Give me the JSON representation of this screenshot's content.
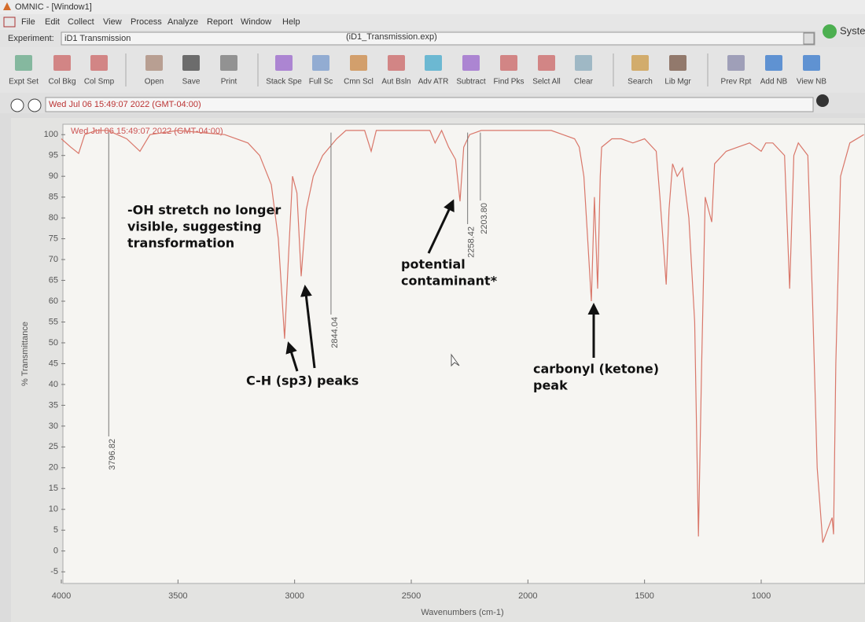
{
  "window_title": "OMNIC - [Window1]",
  "menu": [
    "File",
    "Edit",
    "Collect",
    "View",
    "Process",
    "Analyze",
    "Report",
    "Window",
    "Help"
  ],
  "experiment": {
    "label": "Experiment:",
    "value": "iD1 Transmission",
    "file": "(iD1_Transmission.exp)",
    "system": "Syste"
  },
  "toolbar": [
    "Expt Set",
    "Col Bkg",
    "Col Smp",
    "Open",
    "Save",
    "Print",
    "Stack Spe",
    "Full Sc",
    "Cmn Scl",
    "Aut Bsln",
    "Adv ATR",
    "Subtract",
    "Find Pks",
    "Selct All",
    "Clear",
    "Search",
    "Lib Mgr",
    "Prev Rpt",
    "Add NB",
    "View NB"
  ],
  "info_bar": {
    "timestamp": "Wed Jul 06 15:49:07 2022 (GMT-04:00)"
  },
  "chart_data": {
    "type": "line",
    "title": "Wed Jul 06 15:49:07 2022 (GMT-04:00)",
    "x_label": "Wavenumbers (cm-1)",
    "y_label": "% Transmittance",
    "color": "#d9776a",
    "x": [
      4000,
      3960,
      3926,
      3900,
      3850,
      3800,
      3720,
      3663,
      3620,
      3500,
      3400,
      3300,
      3200,
      3150,
      3100,
      3070,
      3055,
      3043,
      3025,
      3009,
      2990,
      2972,
      2950,
      2920,
      2880,
      2850,
      2820,
      2780,
      2700,
      2672,
      2650,
      2500,
      2420,
      2398,
      2370,
      2340,
      2310,
      2291,
      2275,
      2250,
      2200,
      2100,
      2000,
      1900,
      1850,
      1800,
      1780,
      1760,
      1745,
      1728,
      1715,
      1701,
      1690,
      1684,
      1640,
      1600,
      1550,
      1500,
      1450,
      1434,
      1407,
      1395,
      1380,
      1360,
      1337,
      1310,
      1285,
      1269,
      1255,
      1240,
      1212,
      1200,
      1150,
      1100,
      1050,
      1000,
      980,
      950,
      900,
      878,
      860,
      841,
      800,
      780,
      760,
      736,
      716,
      696,
      690,
      680,
      660,
      620,
      560
    ],
    "values": [
      99,
      97,
      95.5,
      100,
      101,
      101,
      99,
      96,
      100,
      101,
      100.5,
      100,
      98,
      95,
      88,
      75,
      62,
      51,
      72,
      90,
      86,
      66,
      82,
      90,
      95,
      97,
      99,
      101,
      101,
      96,
      101,
      101,
      101,
      98,
      101,
      97,
      94,
      84,
      97,
      100,
      101,
      101,
      101,
      101,
      100,
      99,
      97,
      90,
      76,
      60,
      85,
      63,
      90,
      97,
      99,
      99,
      98,
      99,
      96,
      85,
      64,
      82,
      93,
      90,
      92,
      80,
      55,
      3.5,
      45,
      85,
      79,
      93,
      96,
      97,
      98,
      96,
      98,
      98,
      95,
      63,
      95,
      98,
      95,
      60,
      20,
      2,
      5,
      8,
      4,
      45,
      90,
      98,
      100
    ],
    "xlim": [
      4000,
      555
    ],
    "ylim": [
      -7.8,
      102.5
    ],
    "xticks": [
      4000,
      3500,
      3000,
      2500,
      2000,
      1500,
      1000
    ],
    "yticks": [
      -5,
      0,
      5,
      10,
      15,
      20,
      25,
      30,
      35,
      40,
      45,
      50,
      55,
      60,
      65,
      70,
      75,
      80,
      85,
      90,
      95,
      100
    ],
    "peak_labels": [
      3796.82,
      2844.04,
      2258.42,
      {
        "value": 2203.8,
        "label": "2203.80"
      }
    ],
    "annotations": [
      {
        "lines": [
          "-OH stretch no longer",
          "visible, suggesting",
          "transformation"
        ]
      },
      {
        "lines": [
          "C-H (sp3) peaks"
        ]
      },
      {
        "lines": [
          "potential",
          "contaminant*"
        ]
      },
      {
        "lines": [
          "carbonyl (ketone)",
          "peak"
        ]
      }
    ]
  }
}
